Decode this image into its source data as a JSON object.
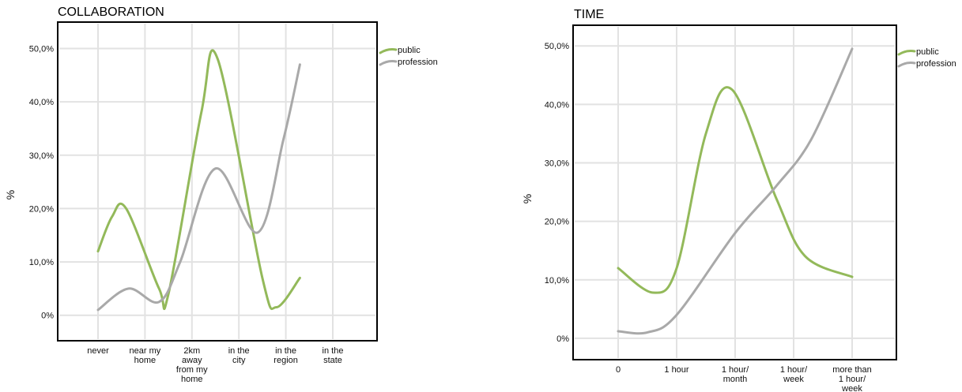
{
  "chart_data": [
    {
      "type": "line",
      "title": "COLLABORATION",
      "ylabel": "%",
      "xlabel": "",
      "smooth": true,
      "categories": [
        [
          "never"
        ],
        [
          "near my",
          "home"
        ],
        [
          "2km",
          "away",
          "from my",
          "home"
        ],
        [
          "in the",
          "city"
        ],
        [
          "in the",
          "region"
        ],
        [
          "in the",
          "state"
        ]
      ],
      "yticks": [
        "0%",
        "10,0%",
        "20,0%",
        "30,0%",
        "40,0%",
        "50,0%"
      ],
      "ytick_values": [
        0,
        10,
        20,
        30,
        40,
        50
      ],
      "ylim": [
        -3,
        52
      ],
      "grid": true,
      "legend_position": "right",
      "series": [
        {
          "name": "public",
          "color": "#93b95a",
          "points": [
            [
              0,
              12
            ],
            [
              0.3,
              18.5
            ],
            [
              0.6,
              20
            ],
            [
              1.3,
              5
            ],
            [
              1.5,
              4
            ],
            [
              2.2,
              38
            ],
            [
              2.55,
              48
            ],
            [
              3.5,
              7
            ],
            [
              3.8,
              1.5
            ],
            [
              4.3,
              7
            ]
          ]
        },
        {
          "name": "profession",
          "color": "#a9a9a9",
          "points": [
            [
              0,
              1
            ],
            [
              0.65,
              5
            ],
            [
              1.3,
              2.5
            ],
            [
              1.75,
              10
            ],
            [
              2.5,
              27.5
            ],
            [
              3.4,
              15.5
            ],
            [
              3.95,
              33
            ],
            [
              4.3,
              47
            ]
          ]
        }
      ]
    },
    {
      "type": "line",
      "title": "TIME",
      "ylabel": "%",
      "xlabel": "",
      "smooth": true,
      "categories": [
        [
          "0"
        ],
        [
          "1 hour"
        ],
        [
          "1 hour/",
          "month"
        ],
        [
          "1 hour/",
          "week"
        ],
        [
          "more than",
          "1 hour/",
          "week"
        ]
      ],
      "yticks": [
        "0%",
        "10,0%",
        "20,0%",
        "30,0%",
        "40,0%",
        "50,0%"
      ],
      "ytick_values": [
        0,
        10,
        20,
        30,
        40,
        50
      ],
      "ylim": [
        -1.5,
        53
      ],
      "grid": true,
      "legend_position": "right",
      "series": [
        {
          "name": "public",
          "color": "#93b95a",
          "points": [
            [
              0,
              12
            ],
            [
              0.6,
              7.8
            ],
            [
              1.0,
              12
            ],
            [
              1.5,
              35
            ],
            [
              1.95,
              42.5
            ],
            [
              2.7,
              24
            ],
            [
              3.2,
              14
            ],
            [
              4.0,
              10.5
            ]
          ]
        },
        {
          "name": "profession",
          "color": "#a9a9a9",
          "points": [
            [
              0,
              1.2
            ],
            [
              0.5,
              1
            ],
            [
              1.0,
              4
            ],
            [
              2.0,
              18
            ],
            [
              2.7,
              26
            ],
            [
              3.3,
              34
            ],
            [
              4.0,
              49.5
            ]
          ]
        }
      ]
    }
  ]
}
